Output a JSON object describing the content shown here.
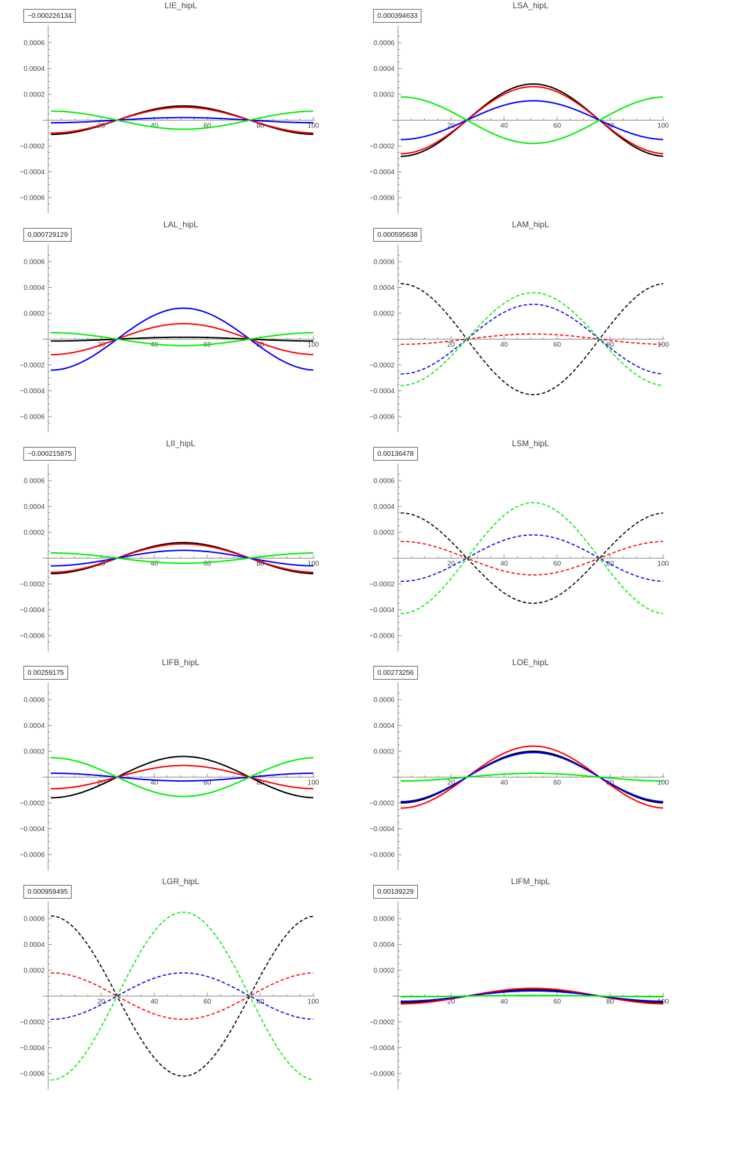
{
  "chart_data": [
    {
      "type": "line",
      "title": "LIE_hipL",
      "value_label": "−0.000226134",
      "xlim": [
        0,
        100
      ],
      "ylim": [
        -0.00068,
        0.00068
      ],
      "xticks": [
        "20",
        "40",
        "60",
        "80",
        "100"
      ],
      "yticks": [
        "0.0006",
        "0.0004",
        "0.0002",
        "−0.0002",
        "−0.0004",
        "−0.0006"
      ],
      "series": [
        {
          "color": "#000000",
          "style": "solid",
          "amp": 0.00011
        },
        {
          "color": "#ff0000",
          "style": "solid",
          "amp": 0.0001
        },
        {
          "color": "#0000ff",
          "style": "solid",
          "amp": 2e-05
        },
        {
          "color": "#00ee00",
          "style": "solid",
          "amp": -7e-05
        }
      ]
    },
    {
      "type": "line",
      "title": "LSA_hipL",
      "value_label": "0.000394633",
      "xlim": [
        0,
        100
      ],
      "ylim": [
        -0.00068,
        0.00068
      ],
      "xticks": [
        "20",
        "40",
        "60",
        "80",
        "100"
      ],
      "yticks": [
        "0.0006",
        "0.0004",
        "0.0002",
        "−0.0002",
        "−0.0004",
        "−0.0006"
      ],
      "series": [
        {
          "color": "#000000",
          "style": "solid",
          "amp": 0.00028
        },
        {
          "color": "#ff0000",
          "style": "solid",
          "amp": 0.00026
        },
        {
          "color": "#0000ff",
          "style": "solid",
          "amp": 0.00015
        },
        {
          "color": "#00ee00",
          "style": "solid",
          "amp": -0.00018
        }
      ]
    },
    {
      "type": "line",
      "title": "LAL_hipL",
      "value_label": "0.000729129",
      "xlim": [
        0,
        100
      ],
      "ylim": [
        -0.00068,
        0.00068
      ],
      "xticks": [
        "20",
        "40",
        "60",
        "80",
        "100"
      ],
      "yticks": [
        "0.0006",
        "0.0004",
        "0.0002",
        "−0.0002",
        "−0.0004",
        "−0.0006"
      ],
      "series": [
        {
          "color": "#000000",
          "style": "solid",
          "amp": 1.5e-05
        },
        {
          "color": "#ff0000",
          "style": "solid",
          "amp": 0.00012
        },
        {
          "color": "#0000ff",
          "style": "solid",
          "amp": 0.00024
        },
        {
          "color": "#00ee00",
          "style": "solid",
          "amp": -5e-05
        }
      ]
    },
    {
      "type": "line",
      "title": "LAM_hipL",
      "value_label": "0.000595638",
      "xlim": [
        0,
        100
      ],
      "ylim": [
        -0.00068,
        0.00068
      ],
      "xticks": [
        "20",
        "40",
        "60",
        "80",
        "100"
      ],
      "yticks": [
        "0.0006",
        "0.0004",
        "0.0002",
        "−0.0002",
        "−0.0004",
        "−0.0006"
      ],
      "series": [
        {
          "color": "#000000",
          "style": "dashed",
          "amp": -0.00043
        },
        {
          "color": "#ff0000",
          "style": "dashed",
          "amp": 4e-05
        },
        {
          "color": "#0000ff",
          "style": "dashed",
          "amp": 0.00027
        },
        {
          "color": "#00ee00",
          "style": "dashed",
          "amp": 0.00036
        }
      ]
    },
    {
      "type": "line",
      "title": "LII_hipL",
      "value_label": "−0.000215875",
      "xlim": [
        0,
        100
      ],
      "ylim": [
        -0.00068,
        0.00068
      ],
      "xticks": [
        "20",
        "40",
        "60",
        "80",
        "100"
      ],
      "yticks": [
        "0.0006",
        "0.0004",
        "0.0002",
        "−0.0002",
        "−0.0004",
        "−0.0006"
      ],
      "series": [
        {
          "color": "#000000",
          "style": "solid",
          "amp": 0.00012
        },
        {
          "color": "#ff0000",
          "style": "solid",
          "amp": 0.00011
        },
        {
          "color": "#0000ff",
          "style": "solid",
          "amp": 6e-05
        },
        {
          "color": "#00ee00",
          "style": "solid",
          "amp": -4e-05
        }
      ]
    },
    {
      "type": "line",
      "title": "LSM_hipL",
      "value_label": "0.00136478",
      "xlim": [
        0,
        100
      ],
      "ylim": [
        -0.00068,
        0.00068
      ],
      "xticks": [
        "20",
        "40",
        "60",
        "80",
        "100"
      ],
      "yticks": [
        "0.0006",
        "0.0004",
        "0.0002",
        "−0.0002",
        "−0.0004",
        "−0.0006"
      ],
      "series": [
        {
          "color": "#000000",
          "style": "dashed",
          "amp": -0.00035
        },
        {
          "color": "#ff0000",
          "style": "dashed",
          "amp": -0.00013
        },
        {
          "color": "#0000ff",
          "style": "dashed",
          "amp": 0.00018
        },
        {
          "color": "#00ee00",
          "style": "dashed",
          "amp": 0.00043
        }
      ]
    },
    {
      "type": "line",
      "title": "LIFB_hipL",
      "value_label": "0.00259175",
      "xlim": [
        0,
        100
      ],
      "ylim": [
        -0.00068,
        0.00068
      ],
      "xticks": [
        "20",
        "40",
        "60",
        "80",
        "100"
      ],
      "yticks": [
        "0.0006",
        "0.0004",
        "0.0002",
        "−0.0002",
        "−0.0004",
        "−0.0006"
      ],
      "series": [
        {
          "color": "#000000",
          "style": "solid",
          "amp": 0.00016
        },
        {
          "color": "#ff0000",
          "style": "solid",
          "amp": 9e-05
        },
        {
          "color": "#0000ff",
          "style": "solid",
          "amp": -3e-05
        },
        {
          "color": "#00ee00",
          "style": "solid",
          "amp": -0.00015
        }
      ]
    },
    {
      "type": "line",
      "title": "LOE_hipL",
      "value_label": "0.00273256",
      "xlim": [
        0,
        100
      ],
      "ylim": [
        -0.00068,
        0.00068
      ],
      "xticks": [
        "20",
        "40",
        "60",
        "80",
        "100"
      ],
      "yticks": [
        "0.0006",
        "0.0004",
        "0.0002",
        "−0.0002",
        "−0.0004",
        "−0.0006"
      ],
      "series": [
        {
          "color": "#000000",
          "style": "solid",
          "amp": 0.0002
        },
        {
          "color": "#ff0000",
          "style": "solid",
          "amp": 0.00024
        },
        {
          "color": "#0000ff",
          "style": "solid",
          "amp": 0.00019
        },
        {
          "color": "#00ee00",
          "style": "solid",
          "amp": 3e-05
        }
      ]
    },
    {
      "type": "line",
      "title": "LGR_hipL",
      "value_label": "0.000959495",
      "xlim": [
        0,
        100
      ],
      "ylim": [
        -0.00068,
        0.00068
      ],
      "xticks": [
        "20",
        "40",
        "60",
        "80",
        "100"
      ],
      "yticks": [
        "0.0006",
        "0.0004",
        "0.0002",
        "−0.0002",
        "−0.0004",
        "−0.0006"
      ],
      "series": [
        {
          "color": "#000000",
          "style": "dashed",
          "amp": -0.00062
        },
        {
          "color": "#ff0000",
          "style": "dashed",
          "amp": -0.00018
        },
        {
          "color": "#0000ff",
          "style": "dashed",
          "amp": 0.00018
        },
        {
          "color": "#00ee00",
          "style": "dashed",
          "amp": 0.00065
        }
      ]
    },
    {
      "type": "line",
      "title": "LIFM_hipL",
      "value_label": "0.00139229",
      "xlim": [
        0,
        100
      ],
      "ylim": [
        -0.00068,
        0.00068
      ],
      "xticks": [
        "20",
        "40",
        "60",
        "80",
        "100"
      ],
      "yticks": [
        "0.0006",
        "0.0004",
        "0.0002",
        "−0.0002",
        "−0.0004",
        "−0.0006"
      ],
      "series": [
        {
          "color": "#000000",
          "style": "solid",
          "amp": 5e-05
        },
        {
          "color": "#ff0000",
          "style": "solid",
          "amp": 6e-05
        },
        {
          "color": "#0000ff",
          "style": "solid",
          "amp": 4e-05
        },
        {
          "color": "#00ee00",
          "style": "solid",
          "amp": 5e-06
        }
      ]
    }
  ]
}
